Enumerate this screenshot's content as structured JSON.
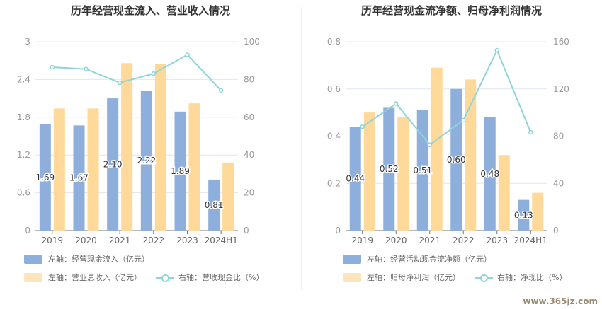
{
  "chart_data": [
    {
      "type": "bar",
      "title": "历年经营现金流入、营业收入情况",
      "categories": [
        "2019",
        "2020",
        "2021",
        "2022",
        "2023",
        "2024H1"
      ],
      "left_axis": {
        "ylim": [
          0,
          3
        ],
        "ticks": [
          "0",
          "0.6",
          "1.2",
          "1.8",
          "2.4",
          "3"
        ]
      },
      "right_axis": {
        "ylim": [
          0,
          100
        ],
        "ticks": [
          "0",
          "20",
          "40",
          "60",
          "80",
          "100"
        ]
      },
      "series": [
        {
          "name": "左轴：经营现金流入（亿元）",
          "type": "bar",
          "axis": "left",
          "color": "#8eaedb",
          "values": [
            1.69,
            1.67,
            2.1,
            2.22,
            1.89,
            0.81
          ],
          "labels": [
            "1.69",
            "1.67",
            "2.10",
            "2.22",
            "1.89",
            "0.81"
          ]
        },
        {
          "name": "左轴：营业总收入（亿元）",
          "type": "bar",
          "axis": "left",
          "color": "#ffd99a",
          "values": [
            1.94,
            1.94,
            2.66,
            2.65,
            2.02,
            1.08
          ]
        },
        {
          "name": "右轴：营收现金比（%）",
          "type": "line",
          "axis": "right",
          "color": "#8dd5d9",
          "values": [
            86.5,
            85.5,
            78.3,
            83.1,
            93.1,
            74.2
          ]
        }
      ]
    },
    {
      "type": "bar",
      "title": "历年经营现金流净额、归母净利润情况",
      "categories": [
        "2019",
        "2020",
        "2021",
        "2022",
        "2023",
        "2024H1"
      ],
      "left_axis": {
        "ylim": [
          0,
          0.8
        ],
        "ticks": [
          "0",
          "0.2",
          "0.4",
          "0.6",
          "0.8"
        ]
      },
      "right_axis": {
        "ylim": [
          0,
          160
        ],
        "ticks": [
          "0",
          "40",
          "80",
          "120",
          "160"
        ]
      },
      "series": [
        {
          "name": "左轴：经营活动现金流净额（亿元）",
          "type": "bar",
          "axis": "left",
          "color": "#8eaedb",
          "values": [
            0.44,
            0.52,
            0.51,
            0.6,
            0.48,
            0.13
          ],
          "labels": [
            "0.44",
            "0.52",
            "0.51",
            "0.60",
            "0.48",
            "0.13"
          ]
        },
        {
          "name": "左轴：归母净利润（亿元）",
          "type": "bar",
          "axis": "left",
          "color": "#ffd99a",
          "values": [
            0.5,
            0.48,
            0.69,
            0.64,
            0.32,
            0.16
          ]
        },
        {
          "name": "右轴：净现比（%）",
          "type": "line",
          "axis": "right",
          "color": "#8dd5d9",
          "values": [
            88,
            107.6,
            72.7,
            93.5,
            152.8,
            83.3
          ]
        }
      ]
    }
  ],
  "watermark": "www.365jz.com"
}
